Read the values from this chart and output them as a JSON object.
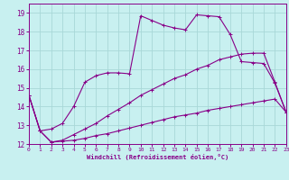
{
  "background_color": "#c8f0f0",
  "grid_color": "#a8d8d8",
  "line_color": "#880088",
  "xlabel": "Windchill (Refroidissement éolien,°C)",
  "xlim": [
    0,
    23
  ],
  "ylim": [
    12,
    19.5
  ],
  "xticks": [
    0,
    1,
    2,
    3,
    4,
    5,
    6,
    7,
    8,
    9,
    10,
    11,
    12,
    13,
    14,
    15,
    16,
    17,
    18,
    19,
    20,
    21,
    22,
    23
  ],
  "yticks": [
    12,
    13,
    14,
    15,
    16,
    17,
    18,
    19
  ],
  "line1_x": [
    0,
    1,
    2,
    3,
    4,
    5,
    6,
    7,
    8,
    9,
    10,
    11,
    12,
    13,
    14,
    15,
    16,
    17,
    18,
    19,
    20,
    21,
    22,
    23
  ],
  "line1_y": [
    14.6,
    12.7,
    12.8,
    13.1,
    14.0,
    15.3,
    15.65,
    15.8,
    15.8,
    15.75,
    18.85,
    18.6,
    18.35,
    18.2,
    18.1,
    18.9,
    18.85,
    18.8,
    17.85,
    16.4,
    16.35,
    16.3,
    15.25,
    13.7
  ],
  "line2_x": [
    0,
    1,
    2,
    3,
    4,
    5,
    6,
    7,
    8,
    9,
    10,
    11,
    12,
    13,
    14,
    15,
    16,
    17,
    18,
    19,
    20,
    21,
    22,
    23
  ],
  "line2_y": [
    14.6,
    12.7,
    12.1,
    12.15,
    12.2,
    12.3,
    12.45,
    12.55,
    12.7,
    12.85,
    13.0,
    13.15,
    13.3,
    13.45,
    13.55,
    13.65,
    13.8,
    13.9,
    14.0,
    14.1,
    14.2,
    14.3,
    14.4,
    13.7
  ],
  "line3_x": [
    0,
    1,
    2,
    3,
    4,
    5,
    6,
    7,
    8,
    9,
    10,
    11,
    12,
    13,
    14,
    15,
    16,
    17,
    18,
    19,
    20,
    21,
    22,
    23
  ],
  "line3_y": [
    14.6,
    12.7,
    12.1,
    12.2,
    12.5,
    12.8,
    13.1,
    13.5,
    13.85,
    14.2,
    14.6,
    14.9,
    15.2,
    15.5,
    15.7,
    16.0,
    16.2,
    16.5,
    16.65,
    16.8,
    16.85,
    16.85,
    15.3,
    13.7
  ]
}
